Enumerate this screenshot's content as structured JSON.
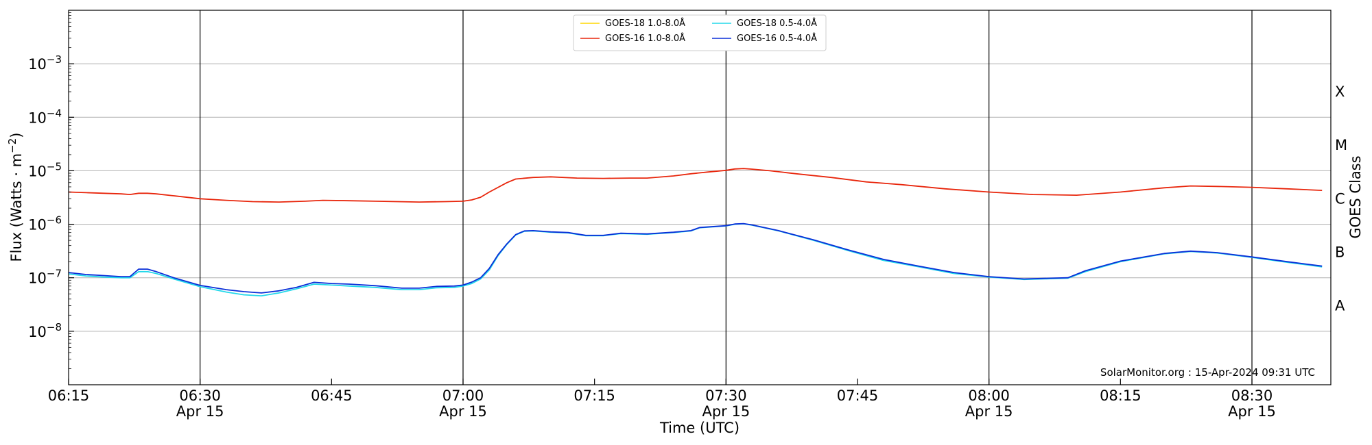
{
  "chart_data": {
    "type": "line",
    "title": "",
    "xlabel": "Time (UTC)",
    "ylabel": "Flux (Watts · m",
    "ylabel_sup": "−2",
    "ylabel_close": ")",
    "right_label": "GOES Class",
    "y_scale": "log",
    "ylim": [
      1e-09,
      0.01
    ],
    "xlim": [
      "06:15",
      "08:39"
    ],
    "x_ticks": [
      {
        "time": "06:15",
        "label": "06:15",
        "date": ""
      },
      {
        "time": "06:30",
        "label": "06:30",
        "date": "Apr 15"
      },
      {
        "time": "06:45",
        "label": "06:45",
        "date": ""
      },
      {
        "time": "07:00",
        "label": "07:00",
        "date": "Apr 15"
      },
      {
        "time": "07:15",
        "label": "07:15",
        "date": ""
      },
      {
        "time": "07:30",
        "label": "07:30",
        "date": "Apr 15"
      },
      {
        "time": "07:45",
        "label": "07:45",
        "date": ""
      },
      {
        "time": "08:00",
        "label": "08:00",
        "date": "Apr 15"
      },
      {
        "time": "08:15",
        "label": "08:15",
        "date": ""
      },
      {
        "time": "08:30",
        "label": "08:30",
        "date": "Apr 15"
      }
    ],
    "vlines": [
      "06:30",
      "07:00",
      "07:30",
      "08:00",
      "08:30"
    ],
    "y_ticks": [
      {
        "value": 1e-08,
        "mant": "10",
        "exp": "−8"
      },
      {
        "value": 1e-07,
        "mant": "10",
        "exp": "−7"
      },
      {
        "value": 1e-06,
        "mant": "10",
        "exp": "−6"
      },
      {
        "value": 1e-05,
        "mant": "10",
        "exp": "−5"
      },
      {
        "value": 0.0001,
        "mant": "10",
        "exp": "−4"
      },
      {
        "value": 0.001,
        "mant": "10",
        "exp": "−3"
      }
    ],
    "goes_classes": [
      {
        "label": "A",
        "value": 3e-08
      },
      {
        "label": "B",
        "value": 3e-07
      },
      {
        "label": "C",
        "value": 3e-06
      },
      {
        "label": "M",
        "value": 3e-05
      },
      {
        "label": "X",
        "value": 0.0003
      }
    ],
    "grid": true,
    "legend_position": "top-center",
    "credit": "SolarMonitor.org : 15-Apr-2024 09:31 UTC",
    "series": [
      {
        "name": "GOES-18 1.0-8.0Å",
        "color": "#ffd700",
        "points": []
      },
      {
        "name": "GOES-16 1.0-8.0Å",
        "color": "#e8260c",
        "points": [
          [
            "06:15",
            4e-06
          ],
          [
            "06:17",
            3.9e-06
          ],
          [
            "06:19",
            3.8e-06
          ],
          [
            "06:21",
            3.7e-06
          ],
          [
            "06:22",
            3.6e-06
          ],
          [
            "06:23",
            3.8e-06
          ],
          [
            "06:24",
            3.8e-06
          ],
          [
            "06:25",
            3.7e-06
          ],
          [
            "06:27",
            3.4e-06
          ],
          [
            "06:30",
            3e-06
          ],
          [
            "06:33",
            2.8e-06
          ],
          [
            "06:36",
            2.65e-06
          ],
          [
            "06:39",
            2.6e-06
          ],
          [
            "06:42",
            2.7e-06
          ],
          [
            "06:44",
            2.8e-06
          ],
          [
            "06:47",
            2.75e-06
          ],
          [
            "06:50",
            2.7e-06
          ],
          [
            "06:55",
            2.6e-06
          ],
          [
            "06:58",
            2.65e-06
          ],
          [
            "07:00",
            2.7e-06
          ],
          [
            "07:01",
            2.85e-06
          ],
          [
            "07:02",
            3.2e-06
          ],
          [
            "07:03",
            4e-06
          ],
          [
            "07:05",
            6e-06
          ],
          [
            "07:06",
            7e-06
          ],
          [
            "07:08",
            7.5e-06
          ],
          [
            "07:10",
            7.7e-06
          ],
          [
            "07:13",
            7.3e-06
          ],
          [
            "07:16",
            7.2e-06
          ],
          [
            "07:19",
            7.3e-06
          ],
          [
            "07:21",
            7.3e-06
          ],
          [
            "07:24",
            8e-06
          ],
          [
            "07:26",
            8.8e-06
          ],
          [
            "07:28",
            9.5e-06
          ],
          [
            "07:30",
            1.02e-05
          ],
          [
            "07:31",
            1.08e-05
          ],
          [
            "07:32",
            1.1e-05
          ],
          [
            "07:33",
            1.07e-05
          ],
          [
            "07:35",
            1e-05
          ],
          [
            "07:38",
            8.8e-06
          ],
          [
            "07:42",
            7.5e-06
          ],
          [
            "07:46",
            6.2e-06
          ],
          [
            "07:50",
            5.5e-06
          ],
          [
            "07:55",
            4.6e-06
          ],
          [
            "08:00",
            4e-06
          ],
          [
            "08:05",
            3.6e-06
          ],
          [
            "08:10",
            3.5e-06
          ],
          [
            "08:15",
            4e-06
          ],
          [
            "08:20",
            4.8e-06
          ],
          [
            "08:23",
            5.2e-06
          ],
          [
            "08:26",
            5.1e-06
          ],
          [
            "08:30",
            4.9e-06
          ],
          [
            "08:34",
            4.6e-06
          ],
          [
            "08:38",
            4.3e-06
          ]
        ]
      },
      {
        "name": "GOES-18 0.5-4.0Å",
        "color": "#22d8ea",
        "points": [
          [
            "06:15",
            1.18e-07
          ],
          [
            "06:17",
            1.08e-07
          ],
          [
            "06:19",
            1.03e-07
          ],
          [
            "06:21",
            1e-07
          ],
          [
            "06:22",
            1e-07
          ],
          [
            "06:23",
            1.3e-07
          ],
          [
            "06:24",
            1.3e-07
          ],
          [
            "06:25",
            1.2e-07
          ],
          [
            "06:27",
            9.5e-08
          ],
          [
            "06:30",
            6.8e-08
          ],
          [
            "06:33",
            5.4e-08
          ],
          [
            "06:35",
            4.8e-08
          ],
          [
            "06:37",
            4.6e-08
          ],
          [
            "06:39",
            5.2e-08
          ],
          [
            "06:41",
            6.2e-08
          ],
          [
            "06:43",
            7.6e-08
          ],
          [
            "06:45",
            7.3e-08
          ],
          [
            "06:47",
            7e-08
          ],
          [
            "06:50",
            6.6e-08
          ],
          [
            "06:53",
            6e-08
          ],
          [
            "06:55",
            6e-08
          ],
          [
            "06:57",
            6.5e-08
          ],
          [
            "06:59",
            6.6e-08
          ],
          [
            "07:00",
            7e-08
          ],
          [
            "07:01",
            7.8e-08
          ],
          [
            "07:02",
            9.5e-08
          ],
          [
            "07:03",
            1.4e-07
          ],
          [
            "07:04",
            2.6e-07
          ],
          [
            "07:05",
            4.2e-07
          ],
          [
            "07:06",
            6.3e-07
          ],
          [
            "07:07",
            7.4e-07
          ],
          [
            "07:08",
            7.5e-07
          ],
          [
            "07:10",
            7.1e-07
          ],
          [
            "07:12",
            6.9e-07
          ],
          [
            "07:14",
            6.1e-07
          ],
          [
            "07:16",
            6.1e-07
          ],
          [
            "07:18",
            6.7e-07
          ],
          [
            "07:21",
            6.5e-07
          ],
          [
            "07:24",
            7e-07
          ],
          [
            "07:26",
            7.5e-07
          ],
          [
            "07:27",
            8.6e-07
          ],
          [
            "07:30",
            9.3e-07
          ],
          [
            "07:31",
            1e-06
          ],
          [
            "07:32",
            1.02e-06
          ],
          [
            "07:33",
            9.6e-07
          ],
          [
            "07:36",
            7.5e-07
          ],
          [
            "07:40",
            5e-07
          ],
          [
            "07:44",
            3.2e-07
          ],
          [
            "07:48",
            2.1e-07
          ],
          [
            "07:52",
            1.6e-07
          ],
          [
            "07:56",
            1.2e-07
          ],
          [
            "08:00",
            1.03e-07
          ],
          [
            "08:04",
            9.3e-08
          ],
          [
            "08:07",
            9.6e-08
          ],
          [
            "08:09",
            9.8e-08
          ],
          [
            "08:11",
            1.3e-07
          ],
          [
            "08:15",
            2e-07
          ],
          [
            "08:20",
            2.8e-07
          ],
          [
            "08:23",
            3.1e-07
          ],
          [
            "08:26",
            2.9e-07
          ],
          [
            "08:30",
            2.4e-07
          ],
          [
            "08:34",
            1.95e-07
          ],
          [
            "08:38",
            1.6e-07
          ]
        ]
      },
      {
        "name": "GOES-16 0.5-4.0Å",
        "color": "#0a2fd8",
        "points": [
          [
            "06:15",
            1.25e-07
          ],
          [
            "06:17",
            1.15e-07
          ],
          [
            "06:19",
            1.1e-07
          ],
          [
            "06:21",
            1.05e-07
          ],
          [
            "06:22",
            1.05e-07
          ],
          [
            "06:23",
            1.45e-07
          ],
          [
            "06:24",
            1.45e-07
          ],
          [
            "06:25",
            1.3e-07
          ],
          [
            "06:27",
            1e-07
          ],
          [
            "06:30",
            7.2e-08
          ],
          [
            "06:33",
            6e-08
          ],
          [
            "06:35",
            5.5e-08
          ],
          [
            "06:37",
            5.2e-08
          ],
          [
            "06:39",
            5.7e-08
          ],
          [
            "06:41",
            6.6e-08
          ],
          [
            "06:43",
            8.2e-08
          ],
          [
            "06:45",
            7.8e-08
          ],
          [
            "06:47",
            7.6e-08
          ],
          [
            "06:50",
            7.1e-08
          ],
          [
            "06:53",
            6.4e-08
          ],
          [
            "06:55",
            6.4e-08
          ],
          [
            "06:57",
            6.9e-08
          ],
          [
            "06:59",
            7e-08
          ],
          [
            "07:00",
            7.3e-08
          ],
          [
            "07:01",
            8.3e-08
          ],
          [
            "07:02",
            1e-07
          ],
          [
            "07:03",
            1.5e-07
          ],
          [
            "07:04",
            2.7e-07
          ],
          [
            "07:05",
            4.3e-07
          ],
          [
            "07:06",
            6.4e-07
          ],
          [
            "07:07",
            7.5e-07
          ],
          [
            "07:08",
            7.6e-07
          ],
          [
            "07:10",
            7.2e-07
          ],
          [
            "07:12",
            7e-07
          ],
          [
            "07:14",
            6.2e-07
          ],
          [
            "07:16",
            6.2e-07
          ],
          [
            "07:18",
            6.8e-07
          ],
          [
            "07:21",
            6.6e-07
          ],
          [
            "07:24",
            7.1e-07
          ],
          [
            "07:26",
            7.6e-07
          ],
          [
            "07:27",
            8.7e-07
          ],
          [
            "07:30",
            9.4e-07
          ],
          [
            "07:31",
            1.01e-06
          ],
          [
            "07:32",
            1.03e-06
          ],
          [
            "07:33",
            9.7e-07
          ],
          [
            "07:36",
            7.6e-07
          ],
          [
            "07:40",
            5.1e-07
          ],
          [
            "07:44",
            3.3e-07
          ],
          [
            "07:48",
            2.2e-07
          ],
          [
            "07:52",
            1.65e-07
          ],
          [
            "07:56",
            1.25e-07
          ],
          [
            "08:00",
            1.05e-07
          ],
          [
            "08:04",
            9.5e-08
          ],
          [
            "08:07",
            9.8e-08
          ],
          [
            "08:09",
            1e-07
          ],
          [
            "08:11",
            1.35e-07
          ],
          [
            "08:15",
            2.05e-07
          ],
          [
            "08:20",
            2.85e-07
          ],
          [
            "08:23",
            3.15e-07
          ],
          [
            "08:26",
            2.95e-07
          ],
          [
            "08:30",
            2.45e-07
          ],
          [
            "08:34",
            2e-07
          ],
          [
            "08:38",
            1.65e-07
          ]
        ]
      }
    ]
  }
}
